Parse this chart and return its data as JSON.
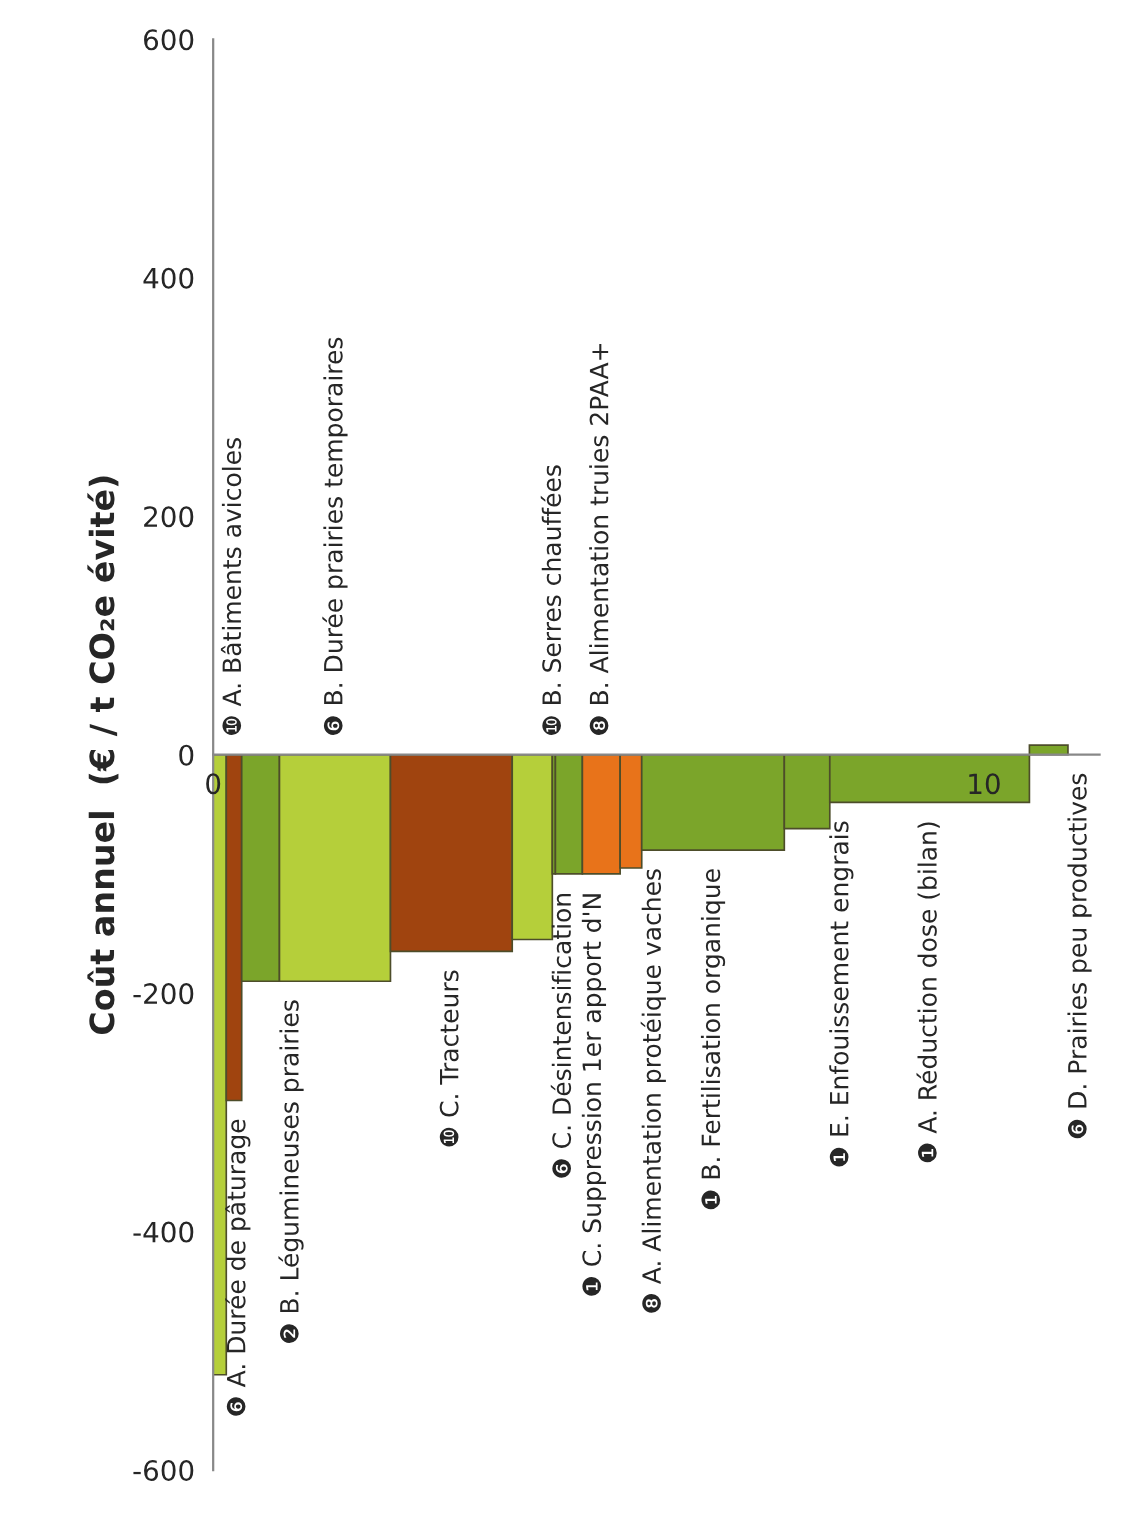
{
  "chart_data": {
    "type": "bar",
    "ylabel": "Coût annuel  (€ / t CO₂e évité)",
    "x": [
      0.085,
      0.27,
      0.615,
      1.58,
      3.09,
      4.14,
      4.42,
      4.615,
      5.035,
      5.42,
      6.485,
      7.705,
      9.295,
      10.84
    ],
    "values": [
      -520,
      -290,
      -190,
      -190,
      -165,
      -155,
      -100,
      -100,
      -100,
      -95,
      -80,
      -62,
      -40,
      8
    ],
    "colors": [
      "#b5cf3a",
      "#a0440f",
      "#7ba52a",
      "#b5cf3a",
      "#a0440f",
      "#b5cf3a",
      "#7ba52a",
      "#7ba52a",
      "#e8731a",
      "#e8731a",
      "#7ba52a",
      "#7ba52a",
      "#7ba52a",
      "#7ba52a"
    ],
    "xlim": [
      0,
      11.5
    ],
    "xticks": [
      0,
      10
    ],
    "ylim": [
      -600,
      600
    ],
    "yticks": [
      -600,
      -400,
      -200,
      0,
      200,
      400,
      600
    ],
    "annotations": [
      {
        "text": "❻ A. Durée de pâturage",
        "x": 0.085,
        "y": -520
      },
      {
        "text": "❿ A. Bâtiments avicoles",
        "x": 0.27,
        "y": 0
      },
      {
        "text": "❷ B. Légumineuses prairies",
        "x": 0.615,
        "y": -190
      },
      {
        "text": "❻ B. Durée prairies temporaires",
        "x": 1.58,
        "y": 0
      },
      {
        "text": "❿ C. Tracteurs",
        "x": 3.09,
        "y": -165
      },
      {
        "text": "❻ C. Désintensification",
        "x": 4.14,
        "y": -155
      },
      {
        "text": "❿ B. Serres chauffées",
        "x": 4.42,
        "y": 0
      },
      {
        "text": "❶ C. Suppression 1er apport d'N",
        "x": 4.615,
        "y": -100
      },
      {
        "text": "❽ B. Alimentation truies 2PAA+",
        "x": 5.035,
        "y": 0
      },
      {
        "text": "❽ A. Alimentation protéique vaches",
        "x": 5.42,
        "y": -95
      },
      {
        "text": "❶ B. Fertilisation organique",
        "x": 6.485,
        "y": -80
      },
      {
        "text": "❶ E. Enfouissement engrais",
        "x": 7.705,
        "y": -62
      },
      {
        "text": "❶ A. Réduction dose (bilan)",
        "x": 9.295,
        "y": -40
      },
      {
        "text": "❻ D. Prairies peu productives",
        "x": 10.84,
        "y": 8
      }
    ]
  }
}
